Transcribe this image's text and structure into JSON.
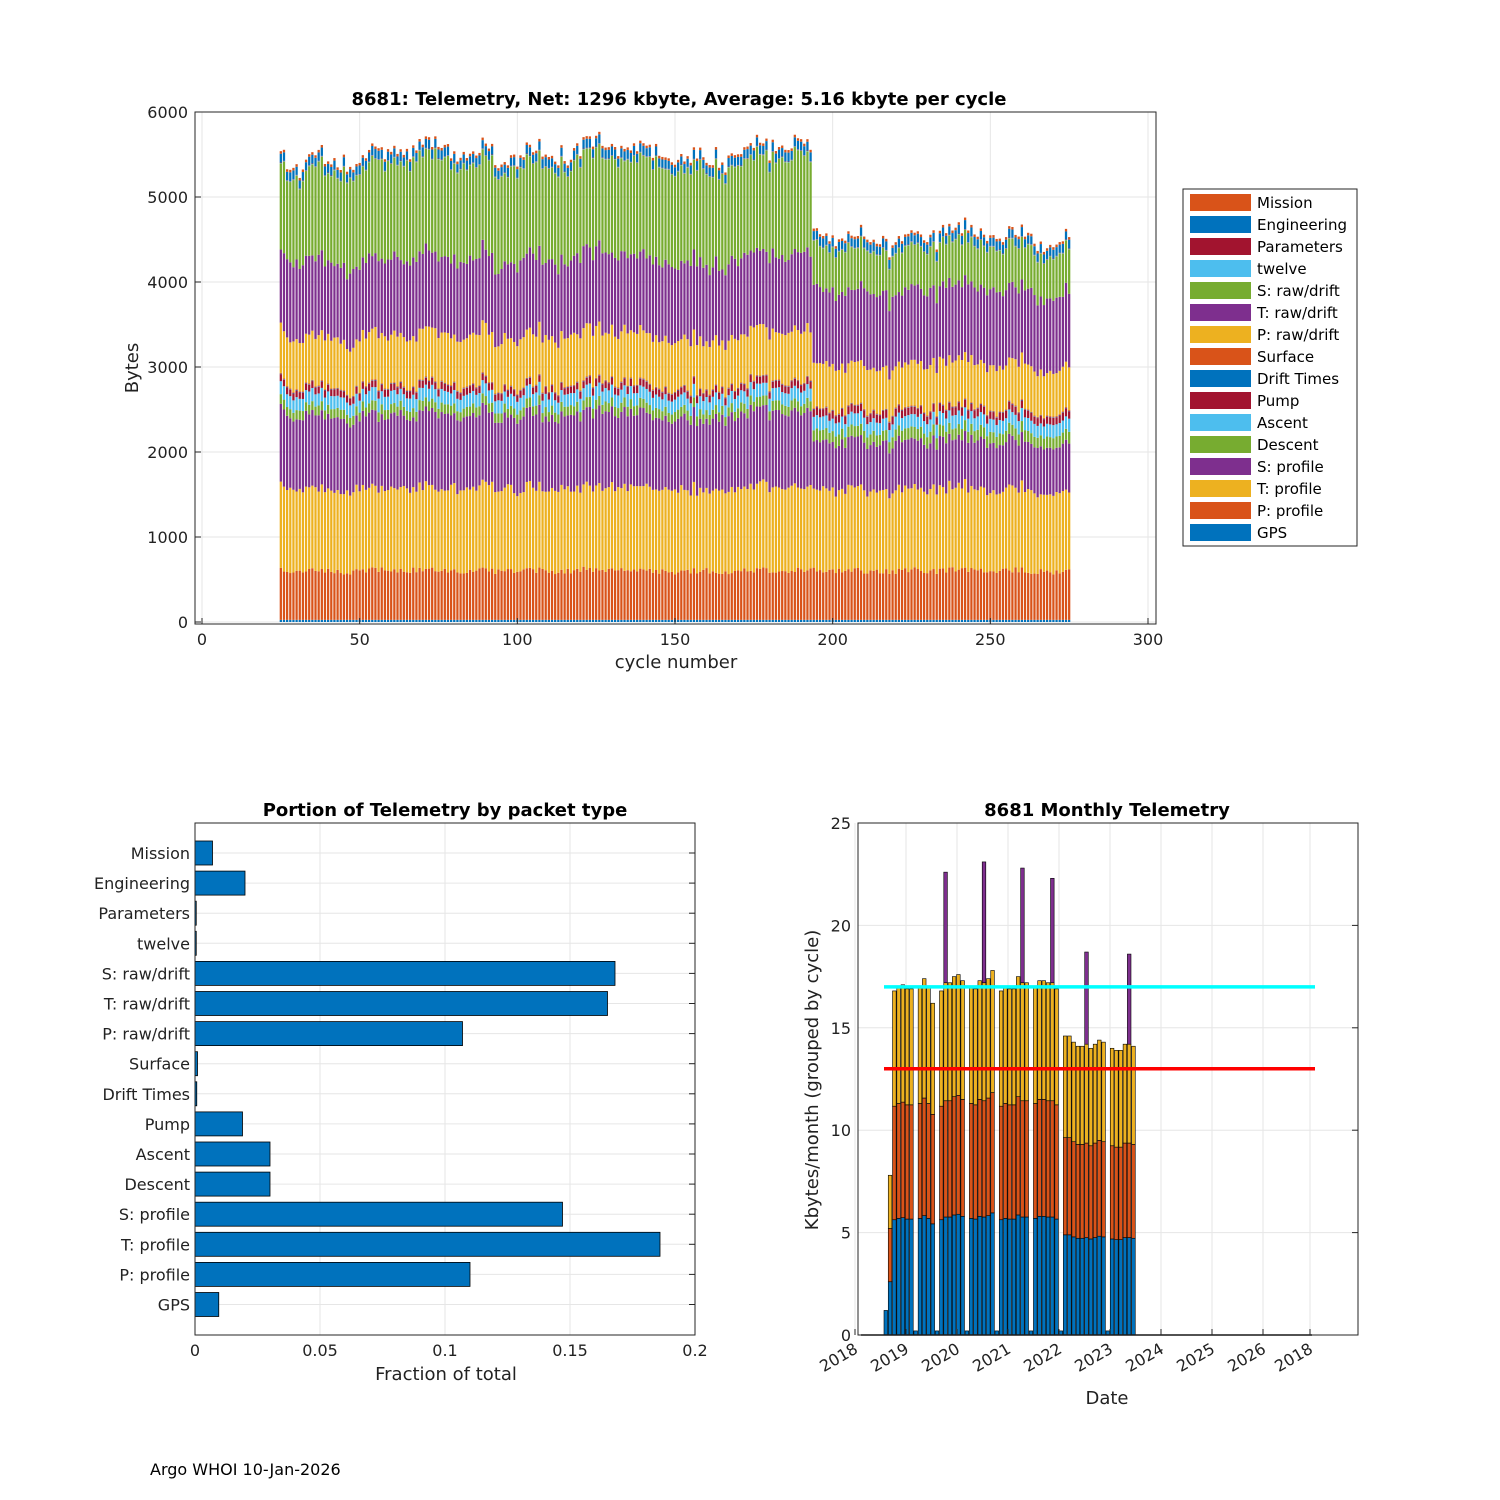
{
  "footer": "Argo WHOI 10-Jan-2026",
  "colors": {
    "Mission": "#D95319",
    "Engineering": "#0072BD",
    "Parameters": "#A2142F",
    "twelve": "#4DBEEE",
    "S: raw/drift": "#77AC30",
    "T: raw/drift": "#7E2F8E",
    "P: raw/drift": "#EDB120",
    "Surface": "#D95319",
    "Drift Times": "#0072BD",
    "Pump": "#A2142F",
    "Ascent": "#4DBEEE",
    "Descent": "#77AC30",
    "S: profile": "#7E2F8E",
    "T: profile": "#EDB120",
    "P: profile": "#D95319",
    "GPS": "#0072BD",
    "bar": "#0072BD",
    "cyan_line": "#00FFFF",
    "red_line": "#FF0000"
  },
  "chart_data": [
    {
      "type": "bar",
      "stacked": true,
      "title": "8681: Telemetry, Net:   1296 kbyte,  Average: 5.16 kbyte per cycle",
      "xlabel": "cycle number",
      "ylabel": "Bytes",
      "xlim": [
        0,
        300
      ],
      "ylim": [
        0,
        6000
      ],
      "xticks": [
        "0",
        "50",
        "100",
        "150",
        "200",
        "250",
        "300"
      ],
      "yticks": [
        "0",
        "1000",
        "2000",
        "3000",
        "4000",
        "5000",
        "6000"
      ],
      "cycle_range": [
        25,
        275
      ],
      "cycle_break": 194,
      "legend_position": "right",
      "legend": [
        "Mission",
        "Engineering",
        "Parameters",
        "twelve",
        "S: raw/drift",
        "T: raw/drift",
        "P: raw/drift",
        "Surface",
        "Drift Times",
        "Pump",
        "Ascent",
        "Descent",
        "S: profile",
        "T: profile",
        "P: profile",
        "GPS"
      ],
      "series_bottom_to_top": [
        {
          "name": "GPS",
          "before": 25,
          "after": 25
        },
        {
          "name": "P: profile",
          "before": 580,
          "after": 580
        },
        {
          "name": "T: profile",
          "before": 970,
          "after": 960
        },
        {
          "name": "S: profile",
          "before": 860,
          "after": 560
        },
        {
          "name": "Descent",
          "before": 110,
          "after": 130
        },
        {
          "name": "Ascent",
          "before": 150,
          "after": 150
        },
        {
          "name": "Pump",
          "before": 80,
          "after": 90
        },
        {
          "name": "Drift Times",
          "before": 5,
          "after": 5
        },
        {
          "name": "Surface",
          "before": 10,
          "after": 10
        },
        {
          "name": "P: raw/drift",
          "before": 580,
          "after": 520
        },
        {
          "name": "T: raw/drift",
          "before": 900,
          "after": 880
        },
        {
          "name": "S: raw/drift",
          "before": 1120,
          "after": 500
        },
        {
          "name": "twelve",
          "before": 5,
          "after": 5
        },
        {
          "name": "Parameters",
          "before": 5,
          "after": 5
        },
        {
          "name": "Engineering",
          "before": 100,
          "after": 100
        },
        {
          "name": "Mission",
          "before": 30,
          "after": 30
        }
      ]
    },
    {
      "type": "bar",
      "orientation": "horizontal",
      "title": "Portion of Telemetry by packet type",
      "xlabel": "Fraction of total",
      "xlim": [
        0,
        0.2
      ],
      "xticks": [
        "0",
        "0.05",
        "0.1",
        "0.15",
        "0.2"
      ],
      "categories": [
        "Mission",
        "Engineering",
        "Parameters",
        "twelve",
        "S: raw/drift",
        "T: raw/drift",
        "P: raw/drift",
        "Surface",
        "Drift Times",
        "Pump",
        "Ascent",
        "Descent",
        "S: profile",
        "T: profile",
        "P: profile",
        "GPS"
      ],
      "values": [
        0.007,
        0.02,
        0.0005,
        0.0005,
        0.168,
        0.165,
        0.107,
        0.001,
        0.0007,
        0.019,
        0.03,
        0.03,
        0.147,
        0.186,
        0.11,
        0.0095
      ]
    },
    {
      "type": "bar",
      "stacked": true,
      "title": "8681 Monthly Telemetry",
      "xlabel": "Date",
      "ylabel": "Kbytes/month (grouped by cycle)",
      "ylim": [
        0,
        25
      ],
      "yticks": [
        "0",
        "5",
        "10",
        "15",
        "20",
        "25"
      ],
      "xticks": [
        "2018",
        "2019",
        "2020",
        "2021",
        "2022",
        "2023",
        "2024",
        "2025",
        "2026",
        "2018"
      ],
      "reference_lines": [
        {
          "value": 17,
          "color": "cyan"
        },
        {
          "value": 13,
          "color": "red"
        }
      ],
      "months_start": "2018-08",
      "series_bottom_to_top": [
        "blue",
        "orange",
        "yellow",
        "purple"
      ],
      "monthly_totals": [
        1.2,
        7.8,
        16.8,
        17.0,
        17.1,
        16.9,
        16.9,
        0.2,
        17.0,
        17.4,
        17.0,
        16.2,
        0.2,
        16.8,
        22.6,
        17.2,
        17.5,
        17.6,
        17.3,
        0.2,
        17.0,
        16.9,
        17.3,
        23.1,
        17.4,
        17.8,
        0.2,
        16.8,
        17.0,
        16.9,
        16.9,
        17.5,
        22.8,
        17.2,
        0.2,
        17.0,
        17.3,
        17.3,
        17.2,
        22.3,
        16.9,
        0.2,
        14.6,
        14.6,
        14.3,
        14.1,
        14.1,
        18.7,
        14.0,
        14.2,
        14.4,
        14.3,
        0.2,
        14.0,
        13.9,
        13.9,
        14.2,
        18.6,
        14.1,
        0.0,
        0.0
      ]
    }
  ]
}
